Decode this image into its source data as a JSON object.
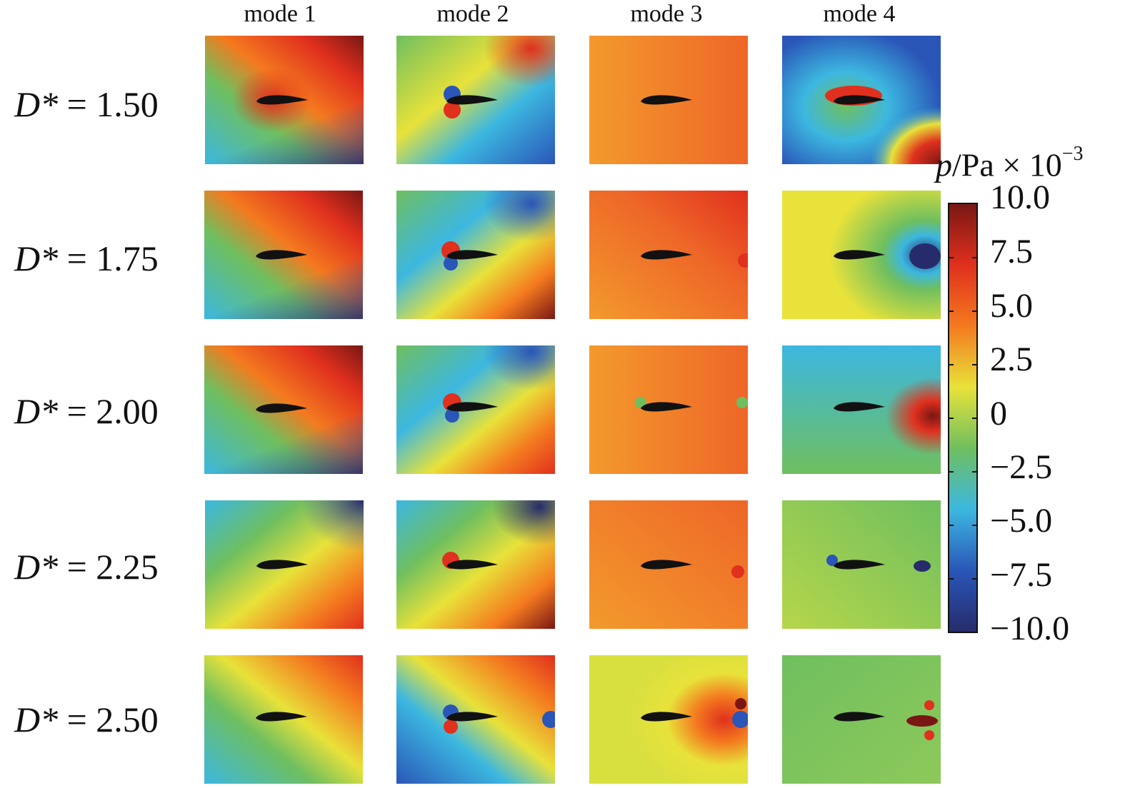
{
  "columns": [
    "mode 1",
    "mode 2",
    "mode 3",
    "mode 4"
  ],
  "rows": [
    {
      "symbol": "D*",
      "value": "= 1.50"
    },
    {
      "symbol": "D*",
      "value": "= 1.75"
    },
    {
      "symbol": "D*",
      "value": "= 2.00"
    },
    {
      "symbol": "D*",
      "value": "= 2.25"
    },
    {
      "symbol": "D*",
      "value": "= 2.50"
    }
  ],
  "colorbar": {
    "variable": "p",
    "unit_text": "/Pa × 10",
    "exponent": "−3",
    "ticks": [
      "10.0",
      "7.5",
      "5.0",
      "2.5",
      "0",
      "−2.5",
      "−5.0",
      "−7.5",
      "−10.0"
    ],
    "colormap": "jet"
  },
  "palette": {
    "dark_red": "#7a1714",
    "red": "#e0301e",
    "orange": "#f47a1f",
    "yellow": "#e8e23a",
    "green": "#6fbf5f",
    "cyan": "#3cb7e0",
    "blue": "#2a56b8",
    "dark_blue": "#262c6b"
  }
}
